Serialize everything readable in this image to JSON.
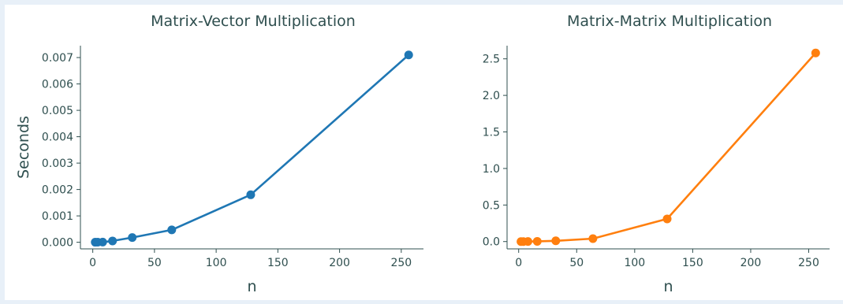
{
  "chart_data": [
    {
      "type": "line",
      "title": "Matrix-Vector Multiplication",
      "xlabel": "n",
      "ylabel": "Seconds",
      "x": [
        2,
        4,
        8,
        16,
        32,
        64,
        128,
        256
      ],
      "series": [
        {
          "values": [
            2e-06,
            3e-06,
            6e-06,
            5e-05,
            0.00018,
            0.00047,
            0.0018,
            0.0071
          ],
          "color": "#1f77b4"
        }
      ],
      "xlim": [
        -10,
        268
      ],
      "ylim": [
        -0.00025,
        0.00745
      ],
      "xticks": [
        0,
        50,
        100,
        150,
        200,
        250
      ],
      "xtick_labels": [
        "0",
        "50",
        "100",
        "150",
        "200",
        "250"
      ],
      "yticks": [
        0,
        0.001,
        0.002,
        0.003,
        0.004,
        0.005,
        0.006,
        0.007
      ],
      "ytick_labels": [
        "0.000",
        "0.001",
        "0.002",
        "0.003",
        "0.004",
        "0.005",
        "0.006",
        "0.007"
      ],
      "grid": false,
      "legend": "none"
    },
    {
      "type": "line",
      "title": "Matrix-Matrix Multiplication",
      "xlabel": "n",
      "ylabel": "",
      "x": [
        2,
        4,
        8,
        16,
        32,
        64,
        128,
        256
      ],
      "series": [
        {
          "values": [
            1e-05,
            0.0001,
            0.0005,
            0.003,
            0.01,
            0.04,
            0.31,
            2.58
          ],
          "color": "#ff7f0e"
        }
      ],
      "xlim": [
        -10,
        268
      ],
      "ylim": [
        -0.1,
        2.68
      ],
      "xticks": [
        0,
        50,
        100,
        150,
        200,
        250
      ],
      "xtick_labels": [
        "0",
        "50",
        "100",
        "150",
        "200",
        "250"
      ],
      "yticks": [
        0,
        0.5,
        1.0,
        1.5,
        2.0,
        2.5
      ],
      "ytick_labels": [
        "0.0",
        "0.5",
        "1.0",
        "1.5",
        "2.0",
        "2.5"
      ],
      "grid": false,
      "legend": "none"
    }
  ]
}
